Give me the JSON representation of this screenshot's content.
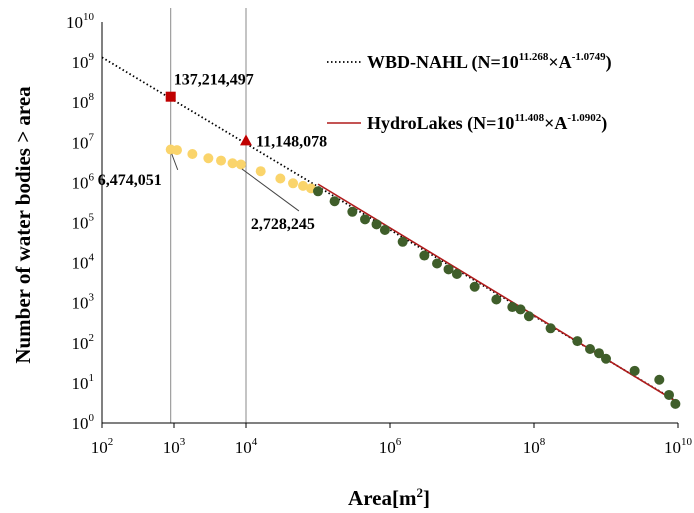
{
  "chart_data": {
    "type": "scatter",
    "x_scale": "log",
    "y_scale": "log",
    "xlim": [
      100,
      10000000000
    ],
    "ylim": [
      1,
      10000000000
    ],
    "xlabel": "Area[m",
    "xlabel_sup": "2",
    "xlabel_end": "]",
    "ylabel": "Number of water bodies > area",
    "x_ticks": [
      {
        "base": "10",
        "exp": "2",
        "value": 100
      },
      {
        "base": "10",
        "exp": "3",
        "value": 1000
      },
      {
        "base": "10",
        "exp": "4",
        "value": 10000
      },
      {
        "base": "10",
        "exp": "6",
        "value": 1000000
      },
      {
        "base": "10",
        "exp": "8",
        "value": 100000000
      },
      {
        "base": "10",
        "exp": "10",
        "value": 10000000000
      }
    ],
    "y_ticks": [
      {
        "base": "10",
        "exp": "0",
        "value": 1
      },
      {
        "base": "10",
        "exp": "1",
        "value": 10
      },
      {
        "base": "10",
        "exp": "2",
        "value": 100
      },
      {
        "base": "10",
        "exp": "3",
        "value": 1000
      },
      {
        "base": "10",
        "exp": "4",
        "value": 10000
      },
      {
        "base": "10",
        "exp": "5",
        "value": 100000
      },
      {
        "base": "10",
        "exp": "6",
        "value": 1000000
      },
      {
        "base": "10",
        "exp": "7",
        "value": 10000000
      },
      {
        "base": "10",
        "exp": "8",
        "value": 100000000
      },
      {
        "base": "10",
        "exp": "9",
        "value": 1000000000
      },
      {
        "base": "10",
        "exp": "10",
        "value": 10000000000
      }
    ],
    "reference_lines_x": [
      900,
      10000
    ],
    "series": [
      {
        "name": "WBD-NAHL",
        "kind": "fit-line",
        "style": "dotted",
        "color": "#000000",
        "log10_coef": 11.268,
        "exponent": -1.0749,
        "x_range": [
          100,
          10000000000
        ],
        "legend": {
          "prefix": "WBD-NAHL (N=10",
          "exp1": "11.268",
          "mid": "×A",
          "exp2": "-1.0749",
          "suffix": ")"
        }
      },
      {
        "name": "HydroLakes",
        "kind": "fit-line",
        "style": "solid",
        "color": "#b01c1c",
        "log10_coef": 11.408,
        "exponent": -1.0902,
        "x_range": [
          100000,
          10000000000
        ],
        "legend": {
          "prefix": "HydroLakes (N=10",
          "exp1": "11.408",
          "mid": "×A",
          "exp2": "-1.0902",
          "suffix": ")"
        }
      },
      {
        "kind": "points",
        "color": "#fad46b",
        "points": [
          [
            900,
            6600000
          ],
          [
            1100,
            6400000
          ],
          [
            1800,
            5100000
          ],
          [
            3000,
            4000000
          ],
          [
            4500,
            3500000
          ],
          [
            6500,
            3000000
          ],
          [
            8500,
            2800000
          ],
          [
            16000,
            1900000
          ],
          [
            30000,
            1250000
          ],
          [
            45000,
            950000
          ],
          [
            62000,
            820000
          ],
          [
            80000,
            710000
          ]
        ]
      },
      {
        "kind": "points",
        "color": "#3f5e2a",
        "points": [
          [
            100000,
            600000
          ],
          [
            170000,
            340000
          ],
          [
            300000,
            185000
          ],
          [
            450000,
            120000
          ],
          [
            650000,
            90000
          ],
          [
            850000,
            65000
          ],
          [
            1500000,
            33000
          ],
          [
            3000000,
            15000
          ],
          [
            4500000,
            9500.0
          ],
          [
            6500000,
            6800
          ],
          [
            8500000,
            5200
          ],
          [
            15000000,
            2500
          ],
          [
            30000000,
            1200
          ],
          [
            50000000,
            780
          ],
          [
            65000000,
            680
          ],
          [
            85000000,
            460
          ],
          [
            170000000,
            230
          ],
          [
            400000000,
            110
          ],
          [
            600000000,
            70
          ],
          [
            800000000,
            55
          ],
          [
            1000000000,
            40
          ],
          [
            2500000000,
            20
          ],
          [
            5500000000,
            12
          ],
          [
            7500000000,
            5
          ],
          [
            9200000000,
            3
          ]
        ]
      },
      {
        "kind": "marker",
        "shape": "square",
        "color": "#c00000",
        "point": [
          900,
          137214497
        ],
        "label": "137,214,497"
      },
      {
        "kind": "marker",
        "shape": "triangle",
        "color": "#c00000",
        "point": [
          10000,
          11148078
        ],
        "label": "11,148,078"
      }
    ],
    "annotations": [
      {
        "text": "6,474,051",
        "point": [
          900,
          6474051
        ]
      },
      {
        "text": "2,728,245",
        "point": [
          8500,
          2728245
        ]
      }
    ],
    "grid": false,
    "legend_position": "top-right"
  }
}
